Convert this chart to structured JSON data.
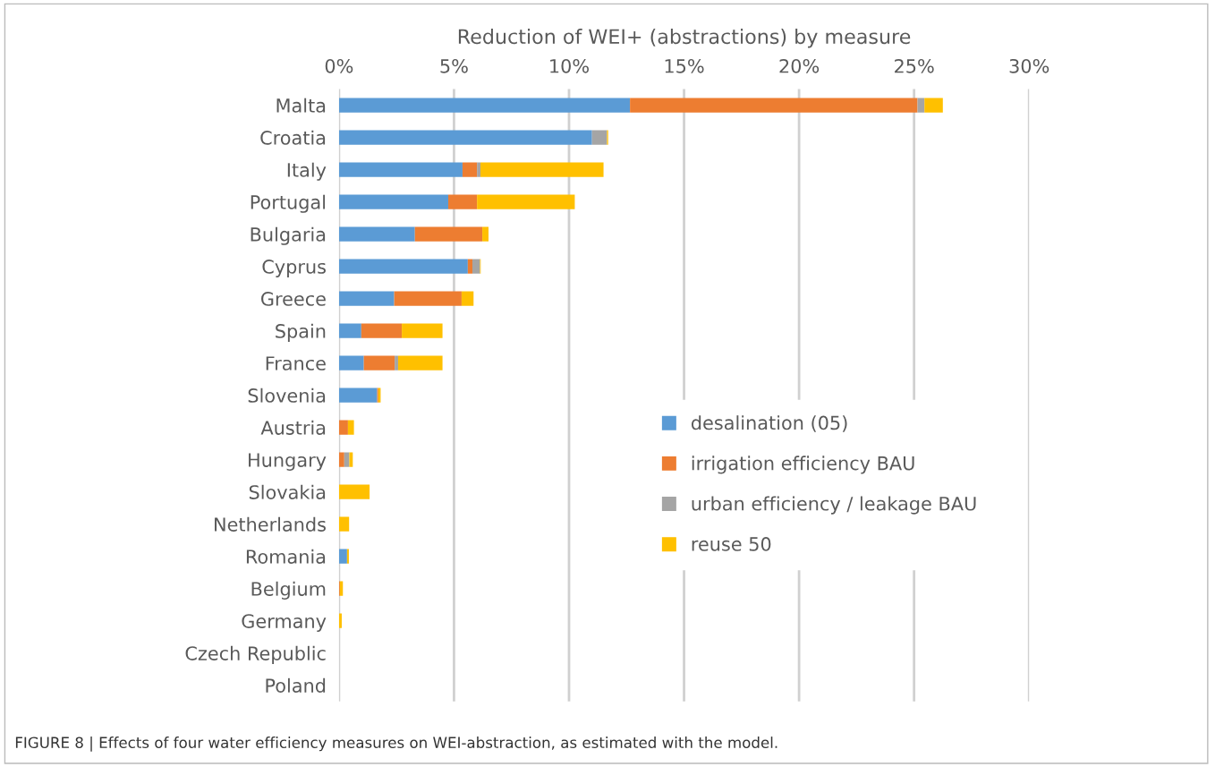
{
  "chart_data": {
    "type": "bar",
    "orientation": "horizontal",
    "stacked": true,
    "xlabel": "Reduction of WEI+ (abstractions) by measure",
    "categories": [
      "Malta",
      "Croatia",
      "Italy",
      "Portugal",
      "Bulgaria",
      "Cyprus",
      "Greece",
      "Spain",
      "France",
      "Slovenia",
      "Austria",
      "Hungary",
      "Slovakia",
      "Netherlands",
      "Romania",
      "Belgium",
      "Germany",
      "Czech Republic",
      "Poland"
    ],
    "series": [
      {
        "name": "desalination (05)",
        "color": "#5b9bd5",
        "values": [
          12.65,
          11.0,
          5.37,
          4.75,
          3.3,
          5.6,
          2.4,
          0.97,
          1.08,
          1.66,
          0,
          0,
          0,
          0,
          0.35,
          0,
          0,
          0,
          0
        ]
      },
      {
        "name": "irrigation efficiency BAU",
        "color": "#ed7d31",
        "values": [
          12.5,
          0,
          0.63,
          1.25,
          2.93,
          0.2,
          2.93,
          1.76,
          1.34,
          0.05,
          0.39,
          0.23,
          0,
          0,
          0,
          0.04,
          0,
          0,
          0
        ]
      },
      {
        "name": "urban efficiency / leakage BAU",
        "color": "#a5a5a5",
        "values": [
          0.3,
          0.65,
          0.15,
          0,
          0,
          0.33,
          0,
          0,
          0.15,
          0,
          0,
          0.22,
          0,
          0,
          0,
          0,
          0,
          0,
          0
        ]
      },
      {
        "name": "reuse 50",
        "color": "#ffc000",
        "values": [
          0.8,
          0.05,
          5.35,
          4.25,
          0.27,
          0.03,
          0.52,
          1.77,
          1.93,
          0.1,
          0.26,
          0.15,
          1.33,
          0.44,
          0.08,
          0.13,
          0.12,
          0,
          0
        ]
      }
    ],
    "xlim": [
      0,
      30
    ],
    "xticks": [
      {
        "value": 0,
        "label": "0%"
      },
      {
        "value": 5,
        "label": "5%"
      },
      {
        "value": 10,
        "label": "10%"
      },
      {
        "value": 15,
        "label": "15%"
      },
      {
        "value": 20,
        "label": "20%"
      },
      {
        "value": 25,
        "label": "25%"
      },
      {
        "value": 30,
        "label": "30%"
      }
    ],
    "grid": "x",
    "legend": "bottom right",
    "annotations": [
      "FIGURE 8 | Effects of four water efficiency measures on WEI-abstraction, as estimated with the model."
    ]
  }
}
